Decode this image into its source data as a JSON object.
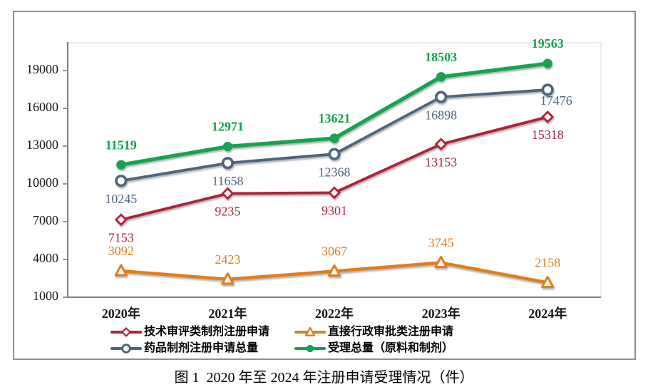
{
  "figure": {
    "caption": "图 1  2020 年至 2024 年注册申请受理情况（件）"
  },
  "chart_data": {
    "type": "line",
    "title": "",
    "xlabel": "",
    "ylabel": "",
    "grid": false,
    "legend_position": "bottom",
    "categories": [
      "2020年",
      "2021年",
      "2022年",
      "2023年",
      "2024年"
    ],
    "yticks": [
      1000,
      4000,
      7000,
      10000,
      13000,
      16000,
      19000
    ],
    "ylim": [
      1000,
      21200
    ],
    "series": [
      {
        "name": "技术审评类制剂注册申请",
        "values": [
          7153,
          9235,
          9301,
          13153,
          15318
        ],
        "color": "#AF2138",
        "marker": "diamond-open",
        "label_side": "below",
        "bold_labels": false
      },
      {
        "name": "直接行政审批类注册申请",
        "values": [
          3092,
          2423,
          3067,
          3745,
          2158
        ],
        "color": "#E07D1F",
        "marker": "triangle-open",
        "label_side": "above",
        "bold_labels": false
      },
      {
        "name": "药品制剂注册申请总量",
        "values": [
          10245,
          11658,
          12368,
          16898,
          17476
        ],
        "color": "#4E657B",
        "marker": "circle-open",
        "label_side": "below",
        "bold_labels": false
      },
      {
        "name": "受理总量（原料和制剂）",
        "values": [
          11519,
          12971,
          13621,
          18503,
          19563
        ],
        "color": "#12A24F",
        "marker": "circle-filled",
        "label_side": "above",
        "bold_labels": true
      }
    ]
  }
}
